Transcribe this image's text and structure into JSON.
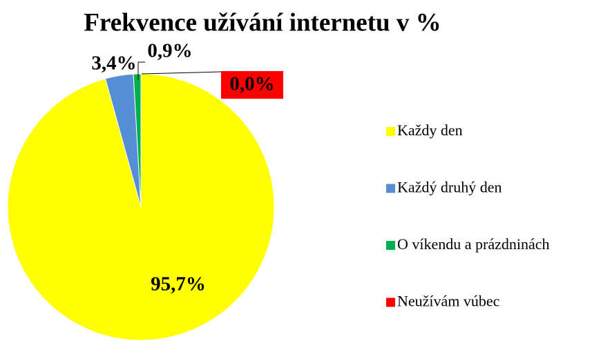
{
  "chart_data": {
    "type": "pie",
    "title": "Frekvence užívání internetu v %",
    "categories": [
      "Každy den",
      "Každý druhý den",
      "O víkendu a prázdninách",
      "Neužívám vúbec"
    ],
    "values": [
      95.7,
      3.4,
      0.9,
      0.0
    ],
    "value_labels": [
      "95,7%",
      "3,4%",
      "0,9%",
      "0,0%"
    ],
    "colors": [
      "#ffff00",
      "#558ed5",
      "#00b050",
      "#ff0000"
    ],
    "legend": "right"
  }
}
